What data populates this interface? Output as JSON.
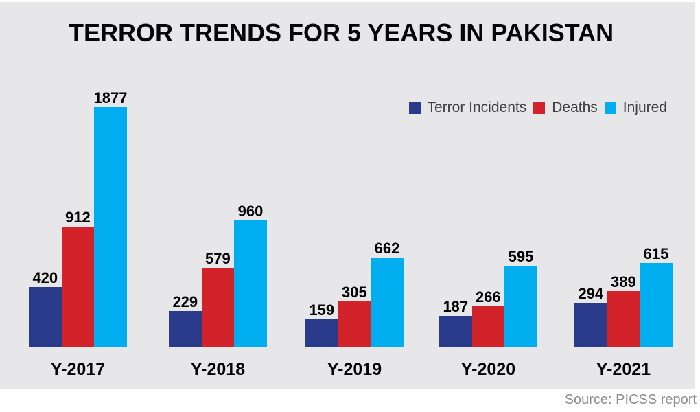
{
  "source": "Source: PICSS report",
  "colors": {
    "panel_background": "#e7e7e9",
    "page_background": "#ffffff",
    "title_text": "#060606",
    "value_label_text": "#000000",
    "legend_text": "#414042",
    "source_text": "#8b8d90"
  },
  "chart_data": {
    "type": "bar",
    "title": "TERROR TRENDS FOR 5 YEARS IN PAKISTAN",
    "categories": [
      "Y-2017",
      "Y-2018",
      "Y-2019",
      "Y-2020",
      "Y-2021"
    ],
    "series": [
      {
        "name": "Terror Incidents",
        "color": "#2b3b8c",
        "values": [
          420,
          229,
          159,
          187,
          294
        ]
      },
      {
        "name": "Deaths",
        "color": "#d2232b",
        "values": [
          912,
          579,
          305,
          266,
          389
        ]
      },
      {
        "name": "Injured",
        "color": "#00aeef",
        "values": [
          1877,
          960,
          662,
          595,
          615
        ]
      }
    ],
    "xlabel": "",
    "ylabel": "",
    "ylim": [
      0,
      1877
    ],
    "grid": false,
    "axes_visible": false,
    "legend_position": "top-right",
    "value_labels": "above-bars",
    "source_note": "Source: PICSS report"
  }
}
